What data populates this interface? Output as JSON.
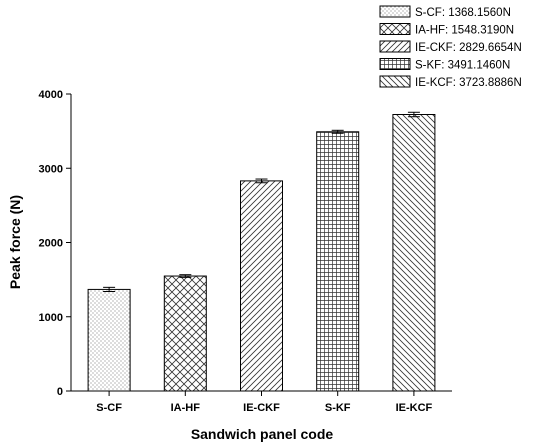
{
  "chart_data": {
    "type": "bar",
    "categories": [
      "S-CF",
      "IA-HF",
      "IE-CKF",
      "S-KF",
      "IE-KCF"
    ],
    "values": [
      1368.156,
      1548.319,
      2829.6654,
      3491.146,
      3723.8886
    ],
    "errors": [
      28,
      18,
      25,
      20,
      30
    ],
    "patterns": [
      "dots",
      "crosshatch-diagonal",
      "diag-forward",
      "grid",
      "diag-back"
    ],
    "xlabel": "Sandwich panel code",
    "ylabel": "Peak force (N)",
    "ylim": [
      0,
      4000
    ],
    "yticks": [
      0,
      1000,
      2000,
      3000,
      4000
    ],
    "legend": {
      "placement": "top-right",
      "entries": [
        "S-CF: 1368.1560N",
        "IA-HF: 1548.3190N",
        "IE-CKF: 2829.6654N",
        "S-KF: 3491.1460N",
        "IE-KCF: 3723.8886N"
      ]
    },
    "grid": false
  }
}
